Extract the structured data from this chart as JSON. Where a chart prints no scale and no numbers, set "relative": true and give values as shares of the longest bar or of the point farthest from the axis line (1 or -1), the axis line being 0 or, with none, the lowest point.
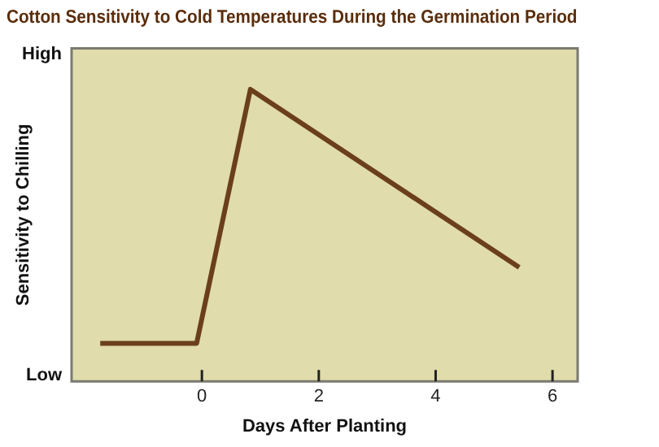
{
  "chart_data": {
    "type": "line",
    "title": "Cotton Sensitivity to Cold Temperatures During the Germination Period",
    "xlabel": "Days After Planting",
    "ylabel": "Sensitivity to Chilling",
    "x": [
      -1.74,
      -0.09,
      0.83,
      5.43
    ],
    "series": [
      {
        "color": "#6b3f1a",
        "values": [
          0.13,
          0.13,
          1,
          0.39
        ]
      }
    ],
    "relative": true,
    "annotations": [
      "High",
      "Low"
    ],
    "xlim": [
      -2.23,
      6.43
    ],
    "xticks": [
      0,
      2,
      4,
      6
    ],
    "grid": false,
    "legend": false,
    "marker": "none",
    "line_style": "solid"
  }
}
